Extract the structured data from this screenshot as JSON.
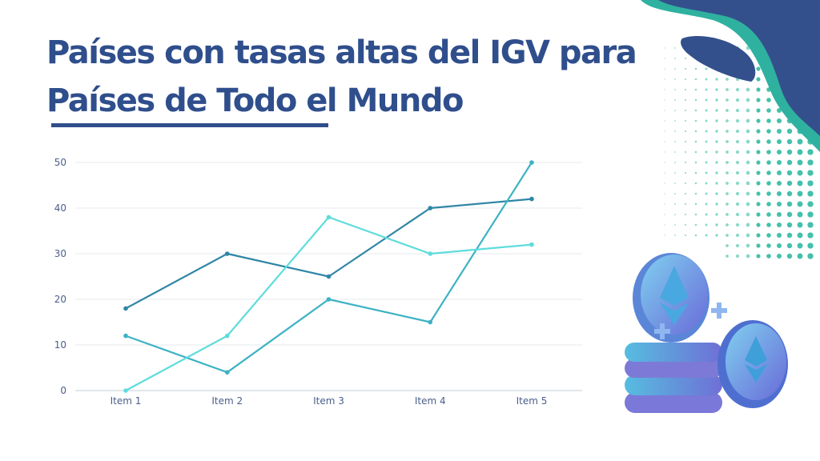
{
  "title": {
    "line1": "Países con tasas altas del IGV para",
    "line2": "Países de Todo el Mundo"
  },
  "colors": {
    "title": "#2f4e8c",
    "blob": "#34508c",
    "teal": "#2fb1a0",
    "grid": "#e6e9ee"
  },
  "chart_data": {
    "type": "line",
    "categories": [
      "Item 1",
      "Item 2",
      "Item 3",
      "Item 4",
      "Item 5"
    ],
    "y_ticks": [
      0,
      10,
      20,
      30,
      40,
      50
    ],
    "ylim": [
      0,
      50
    ],
    "grid": true,
    "legend": "none",
    "series": [
      {
        "values": [
          18,
          30,
          25,
          40,
          42
        ],
        "color": "#2f86a6"
      },
      {
        "values": [
          12,
          4,
          20,
          15,
          50
        ],
        "color": "#3db2c4"
      },
      {
        "values": [
          0,
          12,
          38,
          30,
          32
        ],
        "color": "#5fdcdc"
      }
    ]
  }
}
